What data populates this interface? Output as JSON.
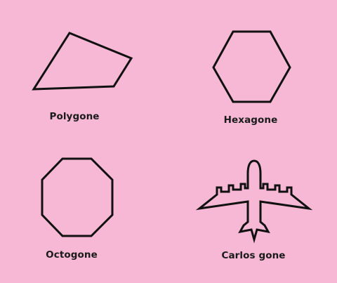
{
  "labels": {
    "polygon": "Polygone",
    "hexagon": "Hexagone",
    "octagon": "Octogone",
    "airplane": "Carlos gone"
  },
  "colors": {
    "background": "#f6b8d4",
    "stroke": "#111111"
  }
}
